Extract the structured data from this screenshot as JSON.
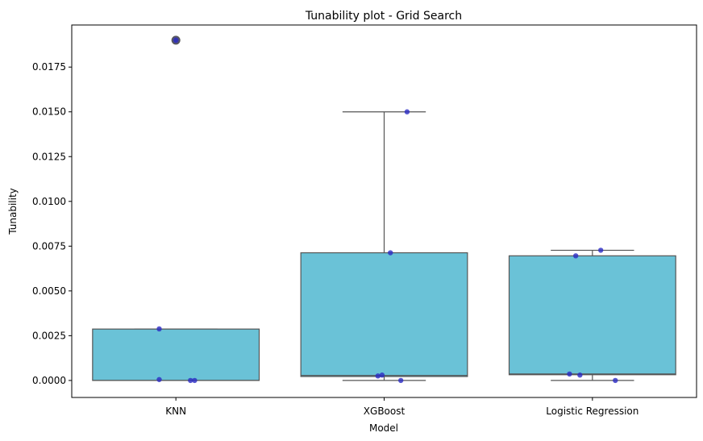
{
  "chart_data": {
    "type": "box",
    "title": "Tunability plot - Grid Search",
    "xlabel": "Model",
    "ylabel": "Tunability",
    "categories": [
      "KNN",
      "XGBoost",
      "Logistic Regression"
    ],
    "ylim": [
      -0.00095,
      0.01985
    ],
    "yticks": [
      "0.0000",
      "0.0025",
      "0.0050",
      "0.0075",
      "0.0100",
      "0.0125",
      "0.0150",
      "0.0175"
    ],
    "box_color": "#6ac2d7",
    "line_color": "#555555",
    "point_color": "#2b2bc4",
    "boxes": [
      {
        "category": "KNN",
        "whisker_low": 0.0,
        "q1": 0.0,
        "median": 0.0,
        "q3": 0.00287,
        "whisker_high": 0.00287,
        "outliers": [
          0.019
        ]
      },
      {
        "category": "XGBoost",
        "whisker_low": 0.0,
        "q1": 0.00022,
        "median": 0.00028,
        "q3": 0.00713,
        "whisker_high": 0.015,
        "outliers": []
      },
      {
        "category": "Logistic Regression",
        "whisker_low": 0.0,
        "q1": 0.00032,
        "median": 0.00036,
        "q3": 0.00696,
        "whisker_high": 0.00727,
        "outliers": []
      }
    ],
    "points": [
      {
        "category": "KNN",
        "jitter": -0.08,
        "value": 0.00288
      },
      {
        "category": "KNN",
        "jitter": -0.08,
        "value": 5e-05
      },
      {
        "category": "KNN",
        "jitter": 0.07,
        "value": 0.0
      },
      {
        "category": "KNN",
        "jitter": 0.09,
        "value": 0.0
      },
      {
        "category": "KNN",
        "jitter": 0.0,
        "value": 0.019
      },
      {
        "category": "XGBoost",
        "jitter": 0.11,
        "value": 0.015
      },
      {
        "category": "XGBoost",
        "jitter": 0.03,
        "value": 0.00713
      },
      {
        "category": "XGBoost",
        "jitter": -0.03,
        "value": 0.00025
      },
      {
        "category": "XGBoost",
        "jitter": -0.01,
        "value": 0.0003
      },
      {
        "category": "XGBoost",
        "jitter": 0.08,
        "value": 0.0
      },
      {
        "category": "Logistic Regression",
        "jitter": 0.04,
        "value": 0.00727
      },
      {
        "category": "Logistic Regression",
        "jitter": -0.08,
        "value": 0.00696
      },
      {
        "category": "Logistic Regression",
        "jitter": -0.11,
        "value": 0.00036
      },
      {
        "category": "Logistic Regression",
        "jitter": -0.06,
        "value": 0.0003
      },
      {
        "category": "Logistic Regression",
        "jitter": 0.11,
        "value": 0.0
      }
    ]
  }
}
